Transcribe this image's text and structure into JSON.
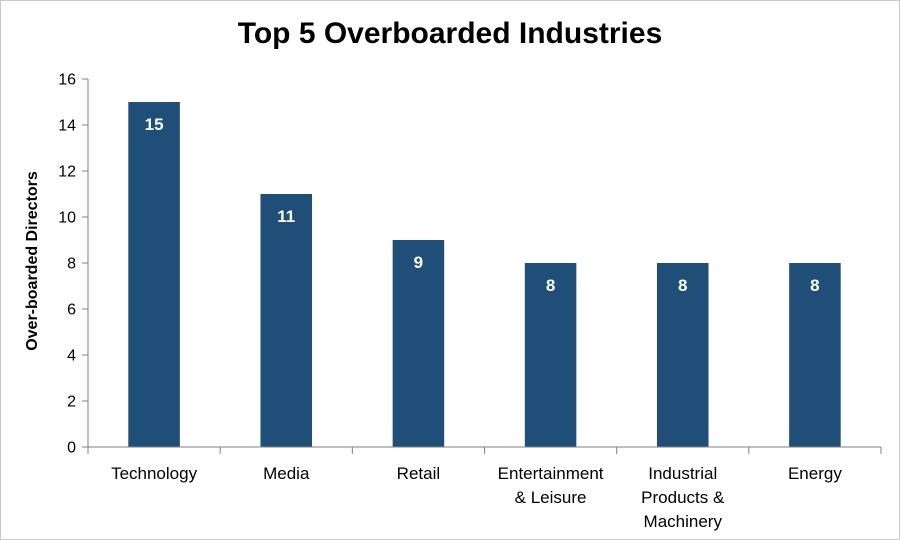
{
  "chart_data": {
    "type": "bar",
    "title": "Top 5 Overboarded Industries",
    "xlabel": "",
    "ylabel": "Over-boarded Directors",
    "categories": [
      [
        "Technology"
      ],
      [
        "Media"
      ],
      [
        "Retail"
      ],
      [
        "Entertainment",
        "& Leisure"
      ],
      [
        "Industrial",
        "Products &",
        "Machinery"
      ],
      [
        "Energy"
      ]
    ],
    "values": [
      15,
      11,
      9,
      8,
      8,
      8
    ],
    "data_labels": [
      "15",
      "11",
      "9",
      "8",
      "8",
      "8"
    ],
    "ylim": [
      0,
      16
    ],
    "yticks": [
      0,
      2,
      4,
      6,
      8,
      10,
      12,
      14,
      16
    ],
    "ytick_labels": [
      "0",
      "2",
      "4",
      "6",
      "8",
      "10",
      "12",
      "14",
      "16"
    ],
    "grid": false,
    "legend": "none",
    "colors": {
      "bar": "#1f4e79",
      "axis": "#808080",
      "data_label": "#ffffff",
      "text": "#000000"
    }
  }
}
